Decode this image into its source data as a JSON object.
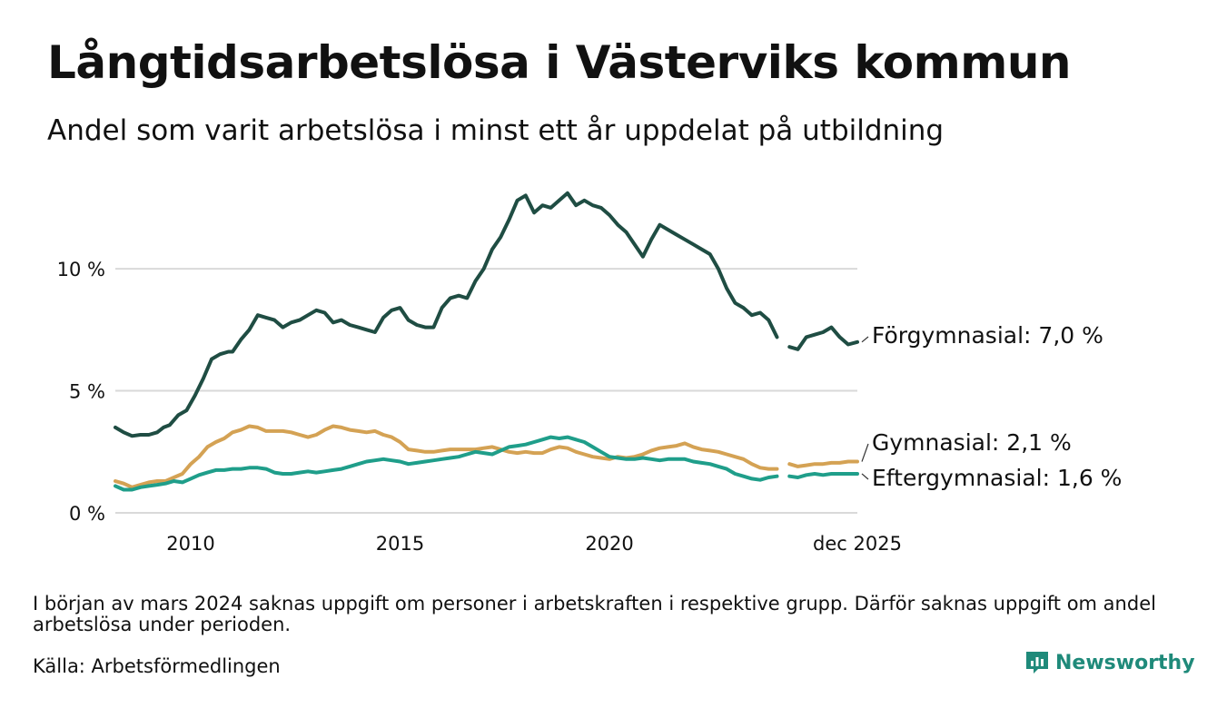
{
  "header": {
    "title": "Långtidsarbetslösa i Västerviks kommun",
    "subtitle": "Andel som varit arbetslösa i minst ett år uppdelat på utbildning"
  },
  "footer": {
    "note": "I början av mars 2024 saknas uppgift om personer i arbetskraften i respektive grupp. Därför saknas uppgift om andel arbetslösa under perioden.",
    "source": "Källa: Arbetsförmedlingen",
    "brand": "Newsworthy"
  },
  "colors": {
    "forgymnasial": "#1f4d43",
    "gymnasial": "#d4a254",
    "eftergymnasial": "#1f9e8a",
    "grid": "#d9d9d9",
    "brand": "#1f8a7a"
  },
  "chart_data": {
    "type": "line",
    "title": "Långtidsarbetslösa i Västerviks kommun",
    "subtitle": "Andel som varit arbetslösa i minst ett år uppdelat på utbildning",
    "xlabel": "",
    "ylabel": "",
    "x_range": [
      2008.2,
      2025.92
    ],
    "ylim": [
      0,
      13.5
    ],
    "y_ticks": [
      {
        "value": 0,
        "label": "0 %"
      },
      {
        "value": 5,
        "label": "5 %"
      },
      {
        "value": 10,
        "label": "10 %"
      }
    ],
    "x_ticks": [
      {
        "value": 2010,
        "label": "2010"
      },
      {
        "value": 2015,
        "label": "2015"
      },
      {
        "value": 2020,
        "label": "2020"
      },
      {
        "value": 2025.92,
        "label": "dec 2025"
      }
    ],
    "gap": [
      2024.0,
      2024.3
    ],
    "grid": true,
    "series": [
      {
        "name": "Förgymnasial",
        "label": "Förgymnasial: 7,0 %",
        "color_key": "forgymnasial",
        "points": [
          [
            2008.2,
            3.5
          ],
          [
            2008.4,
            3.3
          ],
          [
            2008.6,
            3.15
          ],
          [
            2008.8,
            3.2
          ],
          [
            2009.0,
            3.2
          ],
          [
            2009.2,
            3.3
          ],
          [
            2009.35,
            3.5
          ],
          [
            2009.5,
            3.6
          ],
          [
            2009.7,
            4.0
          ],
          [
            2009.9,
            4.2
          ],
          [
            2010.1,
            4.8
          ],
          [
            2010.3,
            5.5
          ],
          [
            2010.5,
            6.3
          ],
          [
            2010.7,
            6.5
          ],
          [
            2010.9,
            6.6
          ],
          [
            2011.0,
            6.6
          ],
          [
            2011.2,
            7.1
          ],
          [
            2011.4,
            7.5
          ],
          [
            2011.6,
            8.1
          ],
          [
            2011.8,
            8.0
          ],
          [
            2012.0,
            7.9
          ],
          [
            2012.2,
            7.6
          ],
          [
            2012.4,
            7.8
          ],
          [
            2012.6,
            7.9
          ],
          [
            2012.8,
            8.1
          ],
          [
            2013.0,
            8.3
          ],
          [
            2013.2,
            8.2
          ],
          [
            2013.4,
            7.8
          ],
          [
            2013.6,
            7.9
          ],
          [
            2013.8,
            7.7
          ],
          [
            2014.0,
            7.6
          ],
          [
            2014.2,
            7.5
          ],
          [
            2014.4,
            7.4
          ],
          [
            2014.6,
            8.0
          ],
          [
            2014.8,
            8.3
          ],
          [
            2015.0,
            8.4
          ],
          [
            2015.2,
            7.9
          ],
          [
            2015.4,
            7.7
          ],
          [
            2015.6,
            7.6
          ],
          [
            2015.8,
            7.6
          ],
          [
            2016.0,
            8.4
          ],
          [
            2016.2,
            8.8
          ],
          [
            2016.4,
            8.9
          ],
          [
            2016.6,
            8.8
          ],
          [
            2016.8,
            9.5
          ],
          [
            2017.0,
            10.0
          ],
          [
            2017.2,
            10.8
          ],
          [
            2017.4,
            11.3
          ],
          [
            2017.6,
            12.0
          ],
          [
            2017.8,
            12.8
          ],
          [
            2018.0,
            13.0
          ],
          [
            2018.2,
            12.3
          ],
          [
            2018.4,
            12.6
          ],
          [
            2018.6,
            12.5
          ],
          [
            2018.8,
            12.8
          ],
          [
            2019.0,
            13.1
          ],
          [
            2019.2,
            12.6
          ],
          [
            2019.4,
            12.8
          ],
          [
            2019.6,
            12.6
          ],
          [
            2019.8,
            12.5
          ],
          [
            2020.0,
            12.2
          ],
          [
            2020.2,
            11.8
          ],
          [
            2020.4,
            11.5
          ],
          [
            2020.6,
            11.0
          ],
          [
            2020.8,
            10.5
          ],
          [
            2021.0,
            11.2
          ],
          [
            2021.2,
            11.8
          ],
          [
            2021.4,
            11.6
          ],
          [
            2021.6,
            11.4
          ],
          [
            2021.8,
            11.2
          ],
          [
            2022.0,
            11.0
          ],
          [
            2022.2,
            10.8
          ],
          [
            2022.4,
            10.6
          ],
          [
            2022.6,
            10.0
          ],
          [
            2022.8,
            9.2
          ],
          [
            2023.0,
            8.6
          ],
          [
            2023.2,
            8.4
          ],
          [
            2023.4,
            8.1
          ],
          [
            2023.6,
            8.2
          ],
          [
            2023.8,
            7.9
          ],
          [
            2024.0,
            7.2
          ],
          null,
          [
            2024.3,
            6.8
          ],
          [
            2024.5,
            6.7
          ],
          [
            2024.7,
            7.2
          ],
          [
            2024.9,
            7.3
          ],
          [
            2025.1,
            7.4
          ],
          [
            2025.3,
            7.6
          ],
          [
            2025.5,
            7.2
          ],
          [
            2025.7,
            6.9
          ],
          [
            2025.92,
            7.0
          ]
        ]
      },
      {
        "name": "Gymnasial",
        "label": "Gymnasial: 2,1 %",
        "color_key": "gymnasial",
        "points": [
          [
            2008.2,
            1.3
          ],
          [
            2008.4,
            1.2
          ],
          [
            2008.6,
            1.05
          ],
          [
            2008.8,
            1.15
          ],
          [
            2009.0,
            1.25
          ],
          [
            2009.2,
            1.3
          ],
          [
            2009.4,
            1.3
          ],
          [
            2009.6,
            1.45
          ],
          [
            2009.8,
            1.6
          ],
          [
            2010.0,
            2.0
          ],
          [
            2010.2,
            2.3
          ],
          [
            2010.4,
            2.7
          ],
          [
            2010.6,
            2.9
          ],
          [
            2010.8,
            3.05
          ],
          [
            2011.0,
            3.3
          ],
          [
            2011.2,
            3.4
          ],
          [
            2011.4,
            3.55
          ],
          [
            2011.6,
            3.5
          ],
          [
            2011.8,
            3.35
          ],
          [
            2012.0,
            3.35
          ],
          [
            2012.2,
            3.35
          ],
          [
            2012.4,
            3.3
          ],
          [
            2012.6,
            3.2
          ],
          [
            2012.8,
            3.1
          ],
          [
            2013.0,
            3.2
          ],
          [
            2013.2,
            3.4
          ],
          [
            2013.4,
            3.55
          ],
          [
            2013.6,
            3.5
          ],
          [
            2013.8,
            3.4
          ],
          [
            2014.0,
            3.35
          ],
          [
            2014.2,
            3.3
          ],
          [
            2014.4,
            3.35
          ],
          [
            2014.6,
            3.2
          ],
          [
            2014.8,
            3.1
          ],
          [
            2015.0,
            2.9
          ],
          [
            2015.2,
            2.6
          ],
          [
            2015.4,
            2.55
          ],
          [
            2015.6,
            2.5
          ],
          [
            2015.8,
            2.5
          ],
          [
            2016.0,
            2.55
          ],
          [
            2016.2,
            2.6
          ],
          [
            2016.4,
            2.6
          ],
          [
            2016.6,
            2.6
          ],
          [
            2016.8,
            2.6
          ],
          [
            2017.0,
            2.65
          ],
          [
            2017.2,
            2.7
          ],
          [
            2017.4,
            2.6
          ],
          [
            2017.6,
            2.5
          ],
          [
            2017.8,
            2.45
          ],
          [
            2018.0,
            2.5
          ],
          [
            2018.2,
            2.45
          ],
          [
            2018.4,
            2.45
          ],
          [
            2018.6,
            2.6
          ],
          [
            2018.8,
            2.7
          ],
          [
            2019.0,
            2.65
          ],
          [
            2019.2,
            2.5
          ],
          [
            2019.4,
            2.4
          ],
          [
            2019.6,
            2.3
          ],
          [
            2019.8,
            2.25
          ],
          [
            2020.0,
            2.2
          ],
          [
            2020.2,
            2.3
          ],
          [
            2020.4,
            2.25
          ],
          [
            2020.6,
            2.3
          ],
          [
            2020.8,
            2.4
          ],
          [
            2021.0,
            2.55
          ],
          [
            2021.2,
            2.65
          ],
          [
            2021.4,
            2.7
          ],
          [
            2021.6,
            2.75
          ],
          [
            2021.8,
            2.85
          ],
          [
            2022.0,
            2.7
          ],
          [
            2022.2,
            2.6
          ],
          [
            2022.4,
            2.55
          ],
          [
            2022.6,
            2.5
          ],
          [
            2022.8,
            2.4
          ],
          [
            2023.0,
            2.3
          ],
          [
            2023.2,
            2.2
          ],
          [
            2023.4,
            2.0
          ],
          [
            2023.6,
            1.85
          ],
          [
            2023.8,
            1.8
          ],
          [
            2024.0,
            1.8
          ],
          null,
          [
            2024.3,
            2.0
          ],
          [
            2024.5,
            1.9
          ],
          [
            2024.7,
            1.95
          ],
          [
            2024.9,
            2.0
          ],
          [
            2025.1,
            2.0
          ],
          [
            2025.3,
            2.05
          ],
          [
            2025.5,
            2.05
          ],
          [
            2025.7,
            2.1
          ],
          [
            2025.92,
            2.1
          ]
        ]
      },
      {
        "name": "Eftergymnasial",
        "label": "Eftergymnasial: 1,6 %",
        "color_key": "eftergymnasial",
        "points": [
          [
            2008.2,
            1.1
          ],
          [
            2008.4,
            0.95
          ],
          [
            2008.6,
            0.95
          ],
          [
            2008.8,
            1.05
          ],
          [
            2009.0,
            1.1
          ],
          [
            2009.2,
            1.15
          ],
          [
            2009.4,
            1.2
          ],
          [
            2009.6,
            1.3
          ],
          [
            2009.8,
            1.25
          ],
          [
            2010.0,
            1.4
          ],
          [
            2010.2,
            1.55
          ],
          [
            2010.4,
            1.65
          ],
          [
            2010.6,
            1.75
          ],
          [
            2010.8,
            1.75
          ],
          [
            2011.0,
            1.8
          ],
          [
            2011.2,
            1.8
          ],
          [
            2011.4,
            1.85
          ],
          [
            2011.6,
            1.85
          ],
          [
            2011.8,
            1.8
          ],
          [
            2012.0,
            1.65
          ],
          [
            2012.2,
            1.6
          ],
          [
            2012.4,
            1.6
          ],
          [
            2012.6,
            1.65
          ],
          [
            2012.8,
            1.7
          ],
          [
            2013.0,
            1.65
          ],
          [
            2013.2,
            1.7
          ],
          [
            2013.4,
            1.75
          ],
          [
            2013.6,
            1.8
          ],
          [
            2013.8,
            1.9
          ],
          [
            2014.0,
            2.0
          ],
          [
            2014.2,
            2.1
          ],
          [
            2014.4,
            2.15
          ],
          [
            2014.6,
            2.2
          ],
          [
            2014.8,
            2.15
          ],
          [
            2015.0,
            2.1
          ],
          [
            2015.2,
            2.0
          ],
          [
            2015.4,
            2.05
          ],
          [
            2015.6,
            2.1
          ],
          [
            2015.8,
            2.15
          ],
          [
            2016.0,
            2.2
          ],
          [
            2016.2,
            2.25
          ],
          [
            2016.4,
            2.3
          ],
          [
            2016.6,
            2.4
          ],
          [
            2016.8,
            2.5
          ],
          [
            2017.0,
            2.45
          ],
          [
            2017.2,
            2.4
          ],
          [
            2017.4,
            2.55
          ],
          [
            2017.6,
            2.7
          ],
          [
            2017.8,
            2.75
          ],
          [
            2018.0,
            2.8
          ],
          [
            2018.2,
            2.9
          ],
          [
            2018.4,
            3.0
          ],
          [
            2018.6,
            3.1
          ],
          [
            2018.8,
            3.05
          ],
          [
            2019.0,
            3.1
          ],
          [
            2019.2,
            3.0
          ],
          [
            2019.4,
            2.9
          ],
          [
            2019.6,
            2.7
          ],
          [
            2019.8,
            2.5
          ],
          [
            2020.0,
            2.3
          ],
          [
            2020.2,
            2.25
          ],
          [
            2020.4,
            2.2
          ],
          [
            2020.6,
            2.2
          ],
          [
            2020.8,
            2.25
          ],
          [
            2021.0,
            2.2
          ],
          [
            2021.2,
            2.15
          ],
          [
            2021.4,
            2.2
          ],
          [
            2021.6,
            2.2
          ],
          [
            2021.8,
            2.2
          ],
          [
            2022.0,
            2.1
          ],
          [
            2022.2,
            2.05
          ],
          [
            2022.4,
            2.0
          ],
          [
            2022.6,
            1.9
          ],
          [
            2022.8,
            1.8
          ],
          [
            2023.0,
            1.6
          ],
          [
            2023.2,
            1.5
          ],
          [
            2023.4,
            1.4
          ],
          [
            2023.6,
            1.35
          ],
          [
            2023.8,
            1.45
          ],
          [
            2024.0,
            1.5
          ],
          null,
          [
            2024.3,
            1.5
          ],
          [
            2024.5,
            1.45
          ],
          [
            2024.7,
            1.55
          ],
          [
            2024.9,
            1.6
          ],
          [
            2025.1,
            1.55
          ],
          [
            2025.3,
            1.6
          ],
          [
            2025.5,
            1.6
          ],
          [
            2025.7,
            1.6
          ],
          [
            2025.92,
            1.6
          ]
        ]
      }
    ]
  }
}
